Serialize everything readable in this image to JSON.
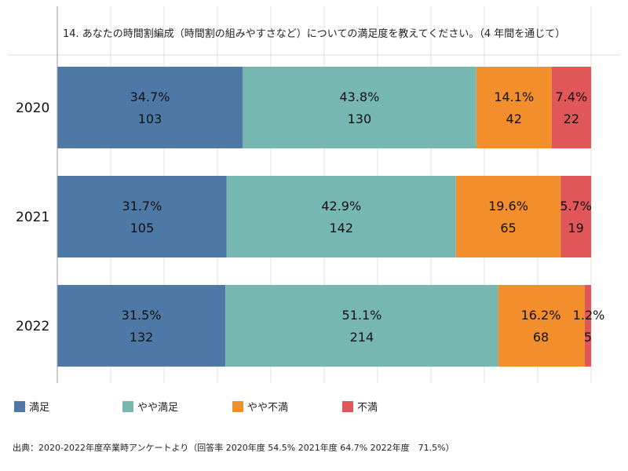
{
  "chart_data": {
    "type": "bar",
    "orientation": "horizontal",
    "stacked": true,
    "normalized": true,
    "title": "14. あなたの時間割編成（時間割の組みやすさなど）についての満足度を教えてください。（4 年間を通じて）",
    "categories": [
      "2020",
      "2021",
      "2022"
    ],
    "series": [
      {
        "name": "満足",
        "color": "#4e79a7",
        "values": [
          34.7,
          31.7,
          31.5
        ],
        "value_labels": [
          "34.7%",
          "31.7%",
          "31.5%"
        ],
        "counts": [
          103,
          105,
          132
        ],
        "count_labels": [
          "103",
          "105",
          "132"
        ]
      },
      {
        "name": "やや満足",
        "color": "#76b7b2",
        "values": [
          43.8,
          42.9,
          51.1
        ],
        "value_labels": [
          "43.8%",
          "42.9%",
          "51.1%"
        ],
        "counts": [
          130,
          142,
          214
        ],
        "count_labels": [
          "130",
          "142",
          "214"
        ]
      },
      {
        "name": "やや不満",
        "color": "#f28e2b",
        "values": [
          14.1,
          19.6,
          16.2
        ],
        "value_labels": [
          "14.1%",
          "19.6%",
          "16.2%"
        ],
        "counts": [
          42,
          65,
          68
        ],
        "count_labels": [
          "42",
          "65",
          "68"
        ]
      },
      {
        "name": "不満",
        "color": "#e15759",
        "values": [
          7.4,
          5.7,
          1.2
        ],
        "value_labels": [
          "7.4%",
          "5.7%",
          "1.2%"
        ],
        "counts": [
          22,
          19,
          5
        ],
        "count_labels": [
          "22",
          "19",
          "5"
        ]
      }
    ],
    "xlim": [
      0,
      100
    ],
    "grid": true,
    "legend_position": "bottom",
    "footnote": "出典：2020-2022年度卒業時アンケートより（回答率 2020年度 54.5% 2021年度 64.7% 2022年度　71.5%）"
  }
}
